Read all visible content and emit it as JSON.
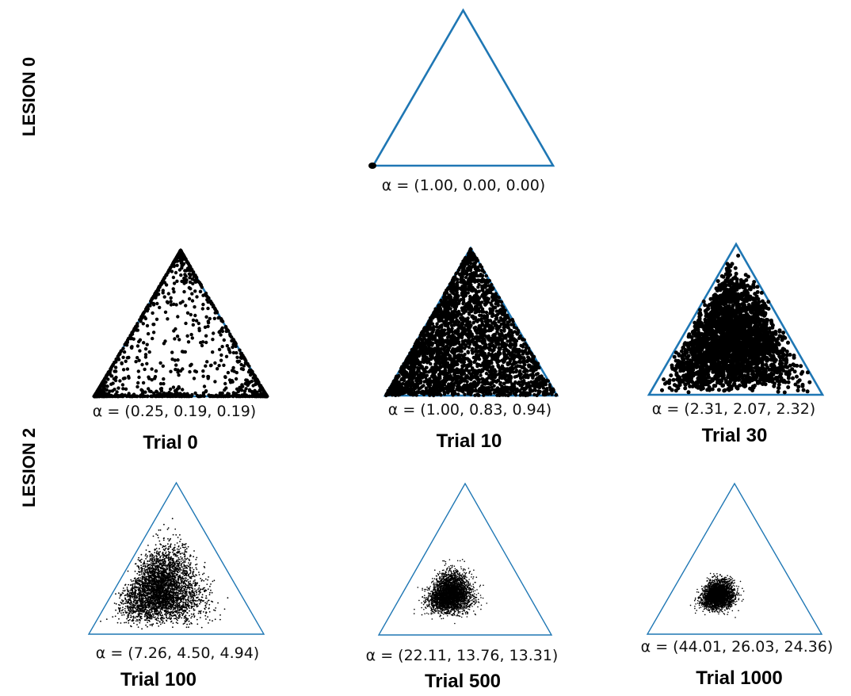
{
  "rows": [
    {
      "label": "LESION 0"
    },
    {
      "label": "LESION 2"
    }
  ],
  "colors": {
    "triangle": "#1f77b4",
    "samples": "#000000"
  },
  "panels": [
    {
      "alpha_text": "α = (1.00, 0.00, 0.00)",
      "trial": "",
      "alpha": [
        1.0,
        0.0,
        0.0
      ]
    },
    {
      "alpha_text": "α = (0.25, 0.19, 0.19)",
      "trial": "Trial 0",
      "alpha": [
        0.25,
        0.19,
        0.19
      ]
    },
    {
      "alpha_text": "α = (1.00, 0.83, 0.94)",
      "trial": "Trial 10",
      "alpha": [
        1.0,
        0.83,
        0.94
      ]
    },
    {
      "alpha_text": "α = (2.31, 2.07, 2.32)",
      "trial": "Trial 30",
      "alpha": [
        2.31,
        2.07,
        2.32
      ]
    },
    {
      "alpha_text": "α = (7.26, 4.50, 4.94)",
      "trial": "Trial 100",
      "alpha": [
        7.26,
        4.5,
        4.94
      ]
    },
    {
      "alpha_text": "α = (22.11, 13.76, 13.31)",
      "trial": "Trial 500",
      "alpha": [
        22.11,
        13.76,
        13.31
      ]
    },
    {
      "alpha_text": "α = (44.01, 26.03, 24.36)",
      "trial": "Trial 1000",
      "alpha": [
        44.01,
        26.03,
        24.36
      ]
    }
  ]
}
